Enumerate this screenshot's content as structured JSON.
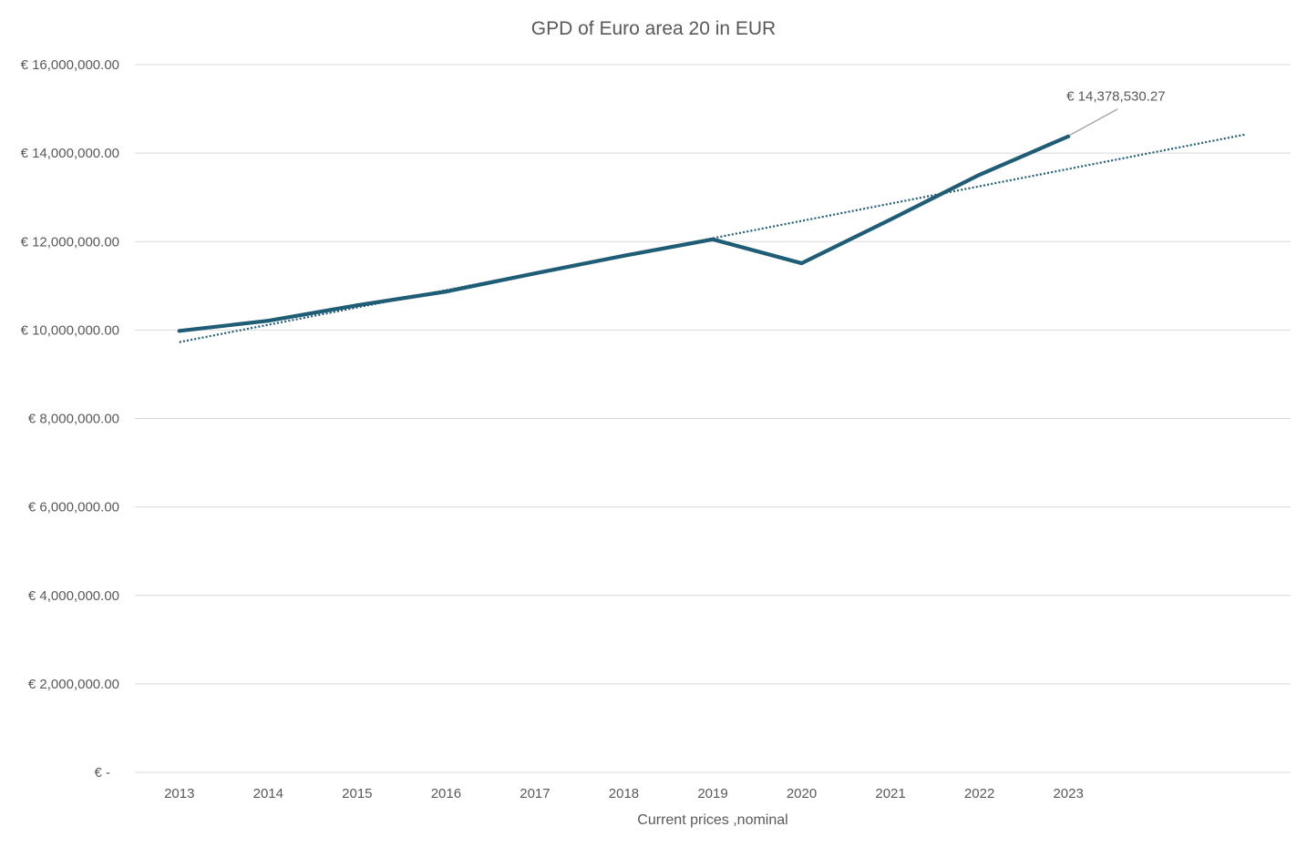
{
  "chart_data": {
    "type": "line",
    "title": "GPD of Euro area 20 in EUR",
    "xlabel": "Current prices ,nominal",
    "ylabel": "",
    "categories": [
      "2013",
      "2014",
      "2015",
      "2016",
      "2017",
      "2018",
      "2019",
      "2020",
      "2021",
      "2022",
      "2023"
    ],
    "series": [
      {
        "values": [
          9980000,
          10210000,
          10560000,
          10870000,
          11280000,
          11680000,
          12050000,
          11510000,
          12500000,
          13510000,
          14378530.27
        ],
        "color": "#1f5c76"
      }
    ],
    "ylim": [
      0,
      16000000
    ],
    "yticks": [
      0,
      2000000,
      4000000,
      6000000,
      8000000,
      10000000,
      12000000,
      14000000,
      16000000
    ],
    "ytick_labels": [
      "€ -",
      "€ 2,000,000.00",
      "€ 4,000,000.00",
      "€ 6,000,000.00",
      "€ 8,000,000.00",
      "€ 10,000,000.00",
      "€ 12,000,000.00",
      "€ 14,000,000.00",
      "€ 16,000,000.00"
    ],
    "grid": true,
    "trendline": {
      "forward": 2,
      "color": "#1f5c76"
    },
    "data_labels": [
      {
        "category_index": 10,
        "text": "€ 14,378,530.27"
      }
    ]
  }
}
